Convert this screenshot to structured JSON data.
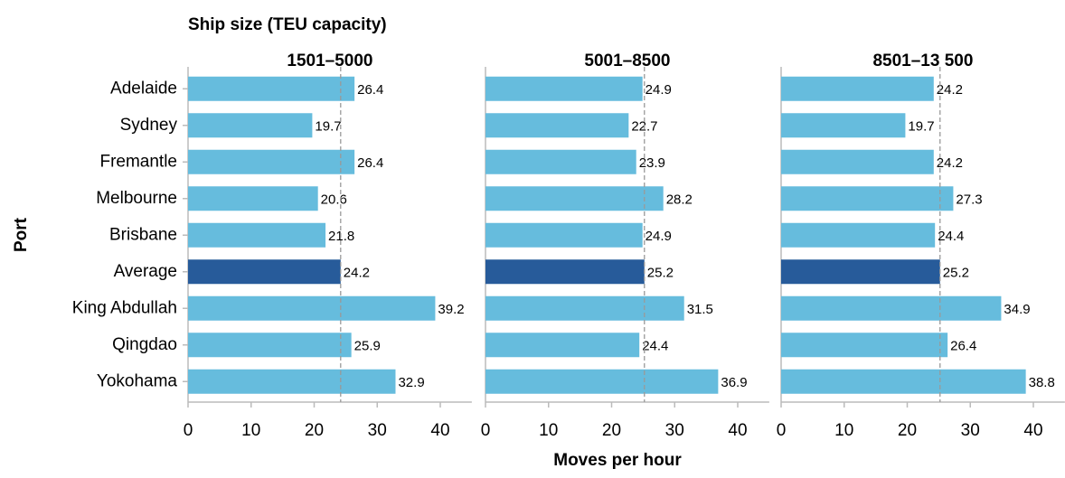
{
  "title": "Ship size (TEU capacity)",
  "y_label": "Port",
  "x_label": "Moves per hour",
  "chart_data": [
    {
      "type": "bar",
      "orientation": "horizontal",
      "subtitle": "1501–5000",
      "categories": [
        "Adelaide",
        "Sydney",
        "Fremantle",
        "Melbourne",
        "Brisbane",
        "Average",
        "King Abdullah",
        "Qingdao",
        "Yokohama"
      ],
      "values": [
        26.4,
        19.7,
        26.4,
        20.6,
        21.8,
        24.2,
        39.2,
        25.9,
        32.9
      ],
      "colors": [
        "#66bcdd",
        "#66bcdd",
        "#66bcdd",
        "#66bcdd",
        "#66bcdd",
        "#275b9a",
        "#66bcdd",
        "#66bcdd",
        "#66bcdd"
      ],
      "reference_line": {
        "value": 24.2,
        "style": "dashed"
      },
      "xlim": [
        0,
        45
      ],
      "xticks": [
        0,
        10,
        20,
        30,
        40
      ]
    },
    {
      "type": "bar",
      "orientation": "horizontal",
      "subtitle": "5001–8500",
      "values": [
        24.9,
        22.7,
        23.9,
        28.2,
        24.9,
        25.2,
        31.5,
        24.4,
        36.9
      ],
      "colors": [
        "#66bcdd",
        "#66bcdd",
        "#66bcdd",
        "#66bcdd",
        "#66bcdd",
        "#275b9a",
        "#66bcdd",
        "#66bcdd",
        "#66bcdd"
      ],
      "reference_line": {
        "value": 25.2,
        "style": "dashed"
      },
      "xlim": [
        0,
        45
      ],
      "xticks": [
        0,
        10,
        20,
        30,
        40
      ]
    },
    {
      "type": "bar",
      "orientation": "horizontal",
      "subtitle": "8501–13 500",
      "values": [
        24.2,
        19.7,
        24.2,
        27.3,
        24.4,
        25.2,
        34.9,
        26.4,
        38.8
      ],
      "colors": [
        "#66bcdd",
        "#66bcdd",
        "#66bcdd",
        "#66bcdd",
        "#66bcdd",
        "#275b9a",
        "#66bcdd",
        "#66bcdd",
        "#66bcdd"
      ],
      "reference_line": {
        "value": 25.2,
        "style": "dashed"
      },
      "xlim": [
        0,
        45
      ],
      "xticks": [
        0,
        10,
        20,
        30,
        40
      ]
    }
  ]
}
